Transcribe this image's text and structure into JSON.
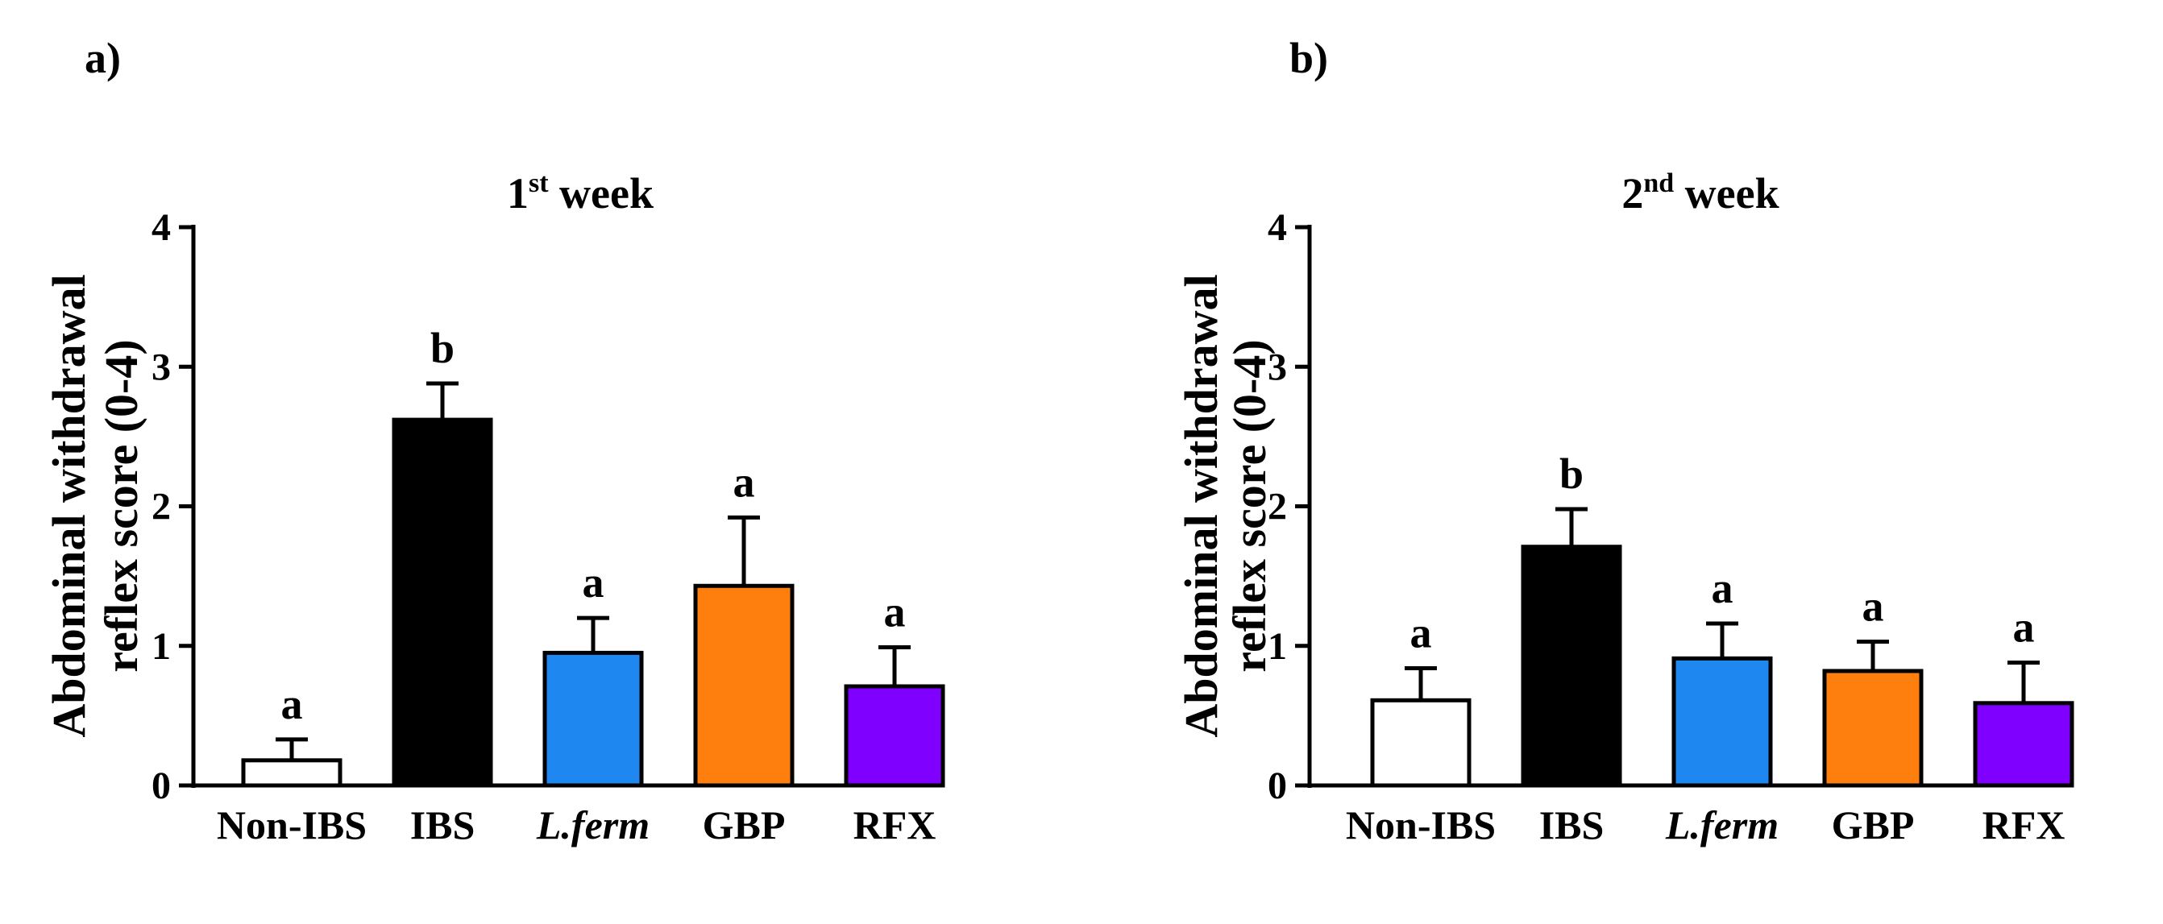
{
  "chart_data": [
    {
      "panel_label": "a)",
      "type": "bar",
      "title_main": "1",
      "title_sup": "st",
      "title_rest": " week",
      "ylabel_line1": "Abdominal  withdrawal",
      "ylabel_line2": "reflex score (0-4)",
      "ylim": [
        0,
        4
      ],
      "yticks": [
        "0",
        "1",
        "2",
        "3",
        "4"
      ],
      "categories": [
        "Non-IBS",
        "IBS",
        "L.ferm",
        "GBP",
        "RFX"
      ],
      "italic_categories": [
        "L.ferm"
      ],
      "values": [
        0.18,
        2.62,
        0.95,
        1.43,
        0.71
      ],
      "errors": [
        0.15,
        0.26,
        0.25,
        0.49,
        0.28
      ],
      "significance": [
        "a",
        "b",
        "a",
        "a",
        "a"
      ],
      "colors": [
        "#ffffff",
        "#000000",
        "#1f87f0",
        "#ff7f0e",
        "#8000ff"
      ]
    },
    {
      "panel_label": "b)",
      "type": "bar",
      "title_main": "2",
      "title_sup": "nd",
      "title_rest": " week",
      "ylabel_line1": "Abdominal  withdrawal",
      "ylabel_line2": "reflex score (0-4)",
      "ylim": [
        0,
        4
      ],
      "yticks": [
        "0",
        "1",
        "2",
        "3",
        "4"
      ],
      "categories": [
        "Non-IBS",
        "IBS",
        "L.ferm",
        "GBP",
        "RFX"
      ],
      "italic_categories": [
        "L.ferm"
      ],
      "values": [
        0.61,
        1.71,
        0.91,
        0.82,
        0.59
      ],
      "errors": [
        0.23,
        0.27,
        0.25,
        0.21,
        0.29
      ],
      "significance": [
        "a",
        "b",
        "a",
        "a",
        "a"
      ],
      "colors": [
        "#ffffff",
        "#000000",
        "#1f87f0",
        "#ff7f0e",
        "#8000ff"
      ]
    }
  ]
}
